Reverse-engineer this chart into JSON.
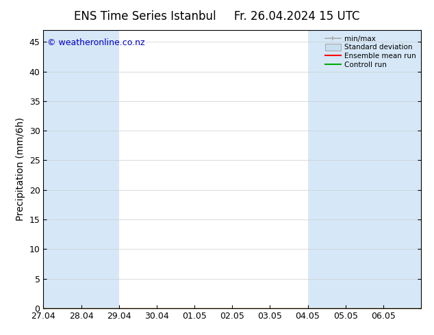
{
  "title_left": "ENS Time Series Istanbul",
  "title_right": "Fr. 26.04.2024 15 UTC",
  "ylabel": "Precipitation (mm/6h)",
  "yticks": [
    0,
    5,
    10,
    15,
    20,
    25,
    30,
    35,
    40,
    45
  ],
  "ylim": [
    0,
    47
  ],
  "xtick_labels": [
    "27.04",
    "28.04",
    "29.04",
    "30.04",
    "01.05",
    "02.05",
    "03.05",
    "04.05",
    "05.05",
    "06.05"
  ],
  "background_color": "#ffffff",
  "plot_bg_color": "#ffffff",
  "shaded_color": "#d6e8f7",
  "shaded_cols": [
    0,
    1,
    7,
    8,
    9
  ],
  "copyright_text": "© weatheronline.co.nz",
  "copyright_color": "#0000cc",
  "legend_labels": [
    "min/max",
    "Standard deviation",
    "Ensemble mean run",
    "Controll run"
  ],
  "legend_colors": [
    "#aaaaaa",
    "#c8dff0",
    "#ff0000",
    "#00aa00"
  ],
  "title_fontsize": 12,
  "axis_label_fontsize": 10,
  "tick_fontsize": 9,
  "figsize": [
    6.34,
    4.9
  ],
  "dpi": 100,
  "x_total": 10.0,
  "x_min": 0.0,
  "x_max": 10.0
}
